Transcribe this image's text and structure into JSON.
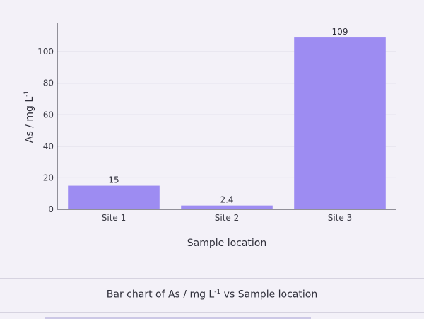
{
  "chart_data": {
    "type": "bar",
    "categories": [
      "Site 1",
      "Site 2",
      "Site 3"
    ],
    "values": [
      15,
      2.4,
      109
    ],
    "data_labels": [
      "15",
      "2.4",
      "109"
    ],
    "xlabel": "Sample location",
    "ylabel": "As / mg L",
    "ylabel_superscript": "-1",
    "ylim": [
      0,
      118
    ],
    "yticks": [
      0,
      20,
      40,
      60,
      80,
      100
    ],
    "grid": true,
    "colors": {
      "bar": "#9d8cf2",
      "grid": "#d9d6e3",
      "axis": "#2f2f3a",
      "background": "#f3f1f8"
    }
  },
  "caption": {
    "prefix": "Bar chart of As / mg L",
    "superscript": "-1",
    "suffix": " vs Sample location"
  }
}
